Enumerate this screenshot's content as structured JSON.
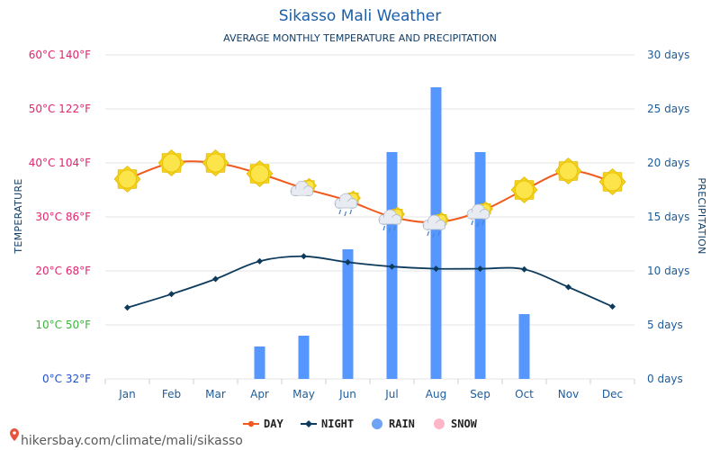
{
  "site": {
    "url_text": "hikersbay.com/climate/mali/sikasso"
  },
  "colors": {
    "day": "#f05a1e",
    "night": "#0e3b5c",
    "rain": "#5597ff",
    "snow": "#ffb6c8",
    "title": "#1a5ea8",
    "grid": "#e6e6e6"
  },
  "legend": {
    "day": "DAY",
    "night": "NIGHT",
    "rain": "RAIN",
    "snow": "SNOW"
  },
  "chart_data": {
    "type": "line",
    "title": "Sikasso Mali Weather",
    "subtitle": "AVERAGE MONTHLY TEMPERATURE AND PRECIPITATION",
    "ylabel": "TEMPERATURE",
    "y2label": "PRECIPITATION",
    "categories": [
      "Jan",
      "Feb",
      "Mar",
      "Apr",
      "May",
      "Jun",
      "Jul",
      "Aug",
      "Sep",
      "Oct",
      "Nov",
      "Dec"
    ],
    "ylim": [
      0,
      60
    ],
    "y2lim": [
      0,
      30
    ],
    "y_ticks": [
      {
        "value": 60,
        "label": "60°C 140°F",
        "color": "#e0256e"
      },
      {
        "value": 50,
        "label": "50°C 122°F",
        "color": "#e0256e"
      },
      {
        "value": 40,
        "label": "40°C 104°F",
        "color": "#e0256e"
      },
      {
        "value": 30,
        "label": "30°C 86°F",
        "color": "#e0256e"
      },
      {
        "value": 20,
        "label": "20°C 68°F",
        "color": "#e0256e"
      },
      {
        "value": 10,
        "label": "10°C 50°F",
        "color": "#3cb43c"
      },
      {
        "value": 0,
        "label": "0°C 32°F",
        "color": "#2050c8"
      }
    ],
    "y2_ticks": [
      {
        "value": 30,
        "label": "30 days"
      },
      {
        "value": 25,
        "label": "25 days"
      },
      {
        "value": 20,
        "label": "20 days"
      },
      {
        "value": 15,
        "label": "15 days"
      },
      {
        "value": 10,
        "label": "10 days"
      },
      {
        "value": 5,
        "label": "5 days"
      },
      {
        "value": 0,
        "label": "0 days"
      }
    ],
    "series": [
      {
        "name": "DAY",
        "type": "line",
        "axis": "temperature",
        "values": [
          37,
          40,
          40,
          38,
          35.3,
          33,
          30,
          29,
          31,
          35,
          38.5,
          36.5
        ]
      },
      {
        "name": "NIGHT",
        "type": "line",
        "axis": "temperature",
        "values": [
          13.2,
          15.7,
          18.5,
          21.8,
          22.7,
          21.6,
          20.8,
          20.4,
          20.4,
          20.3,
          17,
          13.4
        ]
      },
      {
        "name": "RAIN",
        "type": "bar",
        "axis": "precipitation",
        "values": [
          0,
          0,
          0,
          3,
          4,
          12,
          21,
          27,
          21,
          6,
          0,
          0
        ]
      },
      {
        "name": "SNOW",
        "type": "bar",
        "axis": "precipitation",
        "values": [
          0,
          0,
          0,
          0,
          0,
          0,
          0,
          0,
          0,
          0,
          0,
          0
        ]
      }
    ],
    "weather_icons": [
      "sun-icon",
      "sun-icon",
      "sun-icon",
      "sun-icon",
      "sun-cloud-icon",
      "sun-cloud-rain-icon",
      "sun-cloud-rain-icon",
      "sun-cloud-rain-icon",
      "sun-cloud-rain-icon",
      "sun-icon",
      "sun-icon",
      "sun-icon"
    ],
    "grid": true,
    "legend_position": "bottom"
  }
}
